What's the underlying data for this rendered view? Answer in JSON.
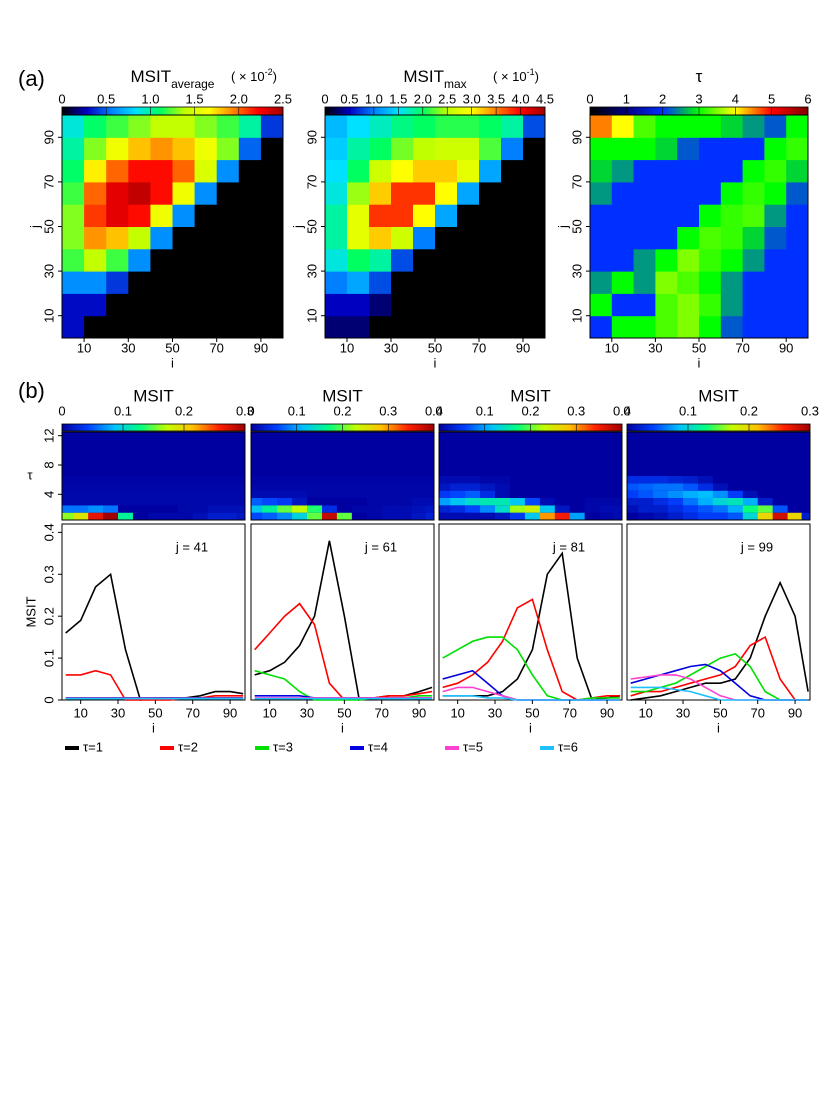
{
  "labels": {
    "a": "(a)",
    "b": "(b)"
  },
  "legend": [
    {
      "name": "τ=1",
      "color": "#000000"
    },
    {
      "name": "τ=2",
      "color": "#ff0000"
    },
    {
      "name": "τ=3",
      "color": "#00e000"
    },
    {
      "name": "τ=4",
      "color": "#0000e0"
    },
    {
      "name": "τ=5",
      "color": "#ff40d0"
    },
    {
      "name": "τ=6",
      "color": "#20c0ff"
    }
  ],
  "chart_data": [
    {
      "type": "heatmap",
      "title": "MSIT",
      "title_sub": "average",
      "multiplier": {
        "text": "( × 10",
        "exponent": "-2",
        "close": ")"
      },
      "zlim": [
        0,
        2.5
      ],
      "zticks": [
        0,
        0.5,
        {
          "value": 1,
          "label": "1.0"
        },
        1.5,
        {
          "value": 2,
          "label": "2.0"
        },
        2.5
      ],
      "colormap": [
        "#000000",
        "#0000c0",
        "#0080ff",
        "#00e0ff",
        "#00ff60",
        "#c0ff00",
        "#ffff00",
        "#ff8000",
        "#ff0000",
        "#a00000"
      ],
      "xlim": [
        0,
        100
      ],
      "ylim": [
        0,
        100
      ],
      "xticks": [
        10,
        30,
        50,
        70,
        90
      ],
      "yticks": [
        10,
        30,
        50,
        70,
        90
      ],
      "xlabel": "i",
      "ylabel": "j",
      "z": [
        [
          0.3,
          0,
          0,
          0,
          0,
          0,
          0,
          0,
          0,
          0
        ],
        [
          0.3,
          0.3,
          0,
          0,
          0,
          0,
          0,
          0,
          0,
          0
        ],
        [
          0.6,
          0.6,
          0.4,
          0,
          0,
          0,
          0,
          0,
          0,
          0
        ],
        [
          1.2,
          1.4,
          1.2,
          0.6,
          0,
          0,
          0,
          0,
          0,
          0
        ],
        [
          1.3,
          1.9,
          1.8,
          1.4,
          0.6,
          0,
          0,
          0,
          0,
          0
        ],
        [
          1.3,
          2.1,
          2.3,
          2.2,
          1.6,
          0.6,
          0,
          0,
          0,
          0
        ],
        [
          1.2,
          2.0,
          2.3,
          2.4,
          2.2,
          1.6,
          0.6,
          0,
          0,
          0
        ],
        [
          1.1,
          1.7,
          2.0,
          2.2,
          2.2,
          2.0,
          1.5,
          0.6,
          0,
          0
        ],
        [
          1.0,
          1.3,
          1.6,
          1.8,
          1.9,
          1.8,
          1.6,
          1.3,
          0.5,
          0
        ],
        [
          0.9,
          1.1,
          1.2,
          1.3,
          1.4,
          1.4,
          1.3,
          1.2,
          1.0,
          0.4
        ]
      ]
    },
    {
      "type": "heatmap",
      "title": "MSIT",
      "title_sub": "max",
      "multiplier": {
        "text": "( × 10",
        "exponent": "-1",
        "close": ")"
      },
      "zlim": [
        0,
        4.5
      ],
      "zticks": [
        0,
        0.5,
        {
          "value": 1,
          "label": "1.0"
        },
        1.5,
        {
          "value": 2,
          "label": "2.0"
        },
        2.5,
        {
          "value": 3,
          "label": "3.0"
        },
        3.5,
        {
          "value": 4,
          "label": "4.0"
        },
        4.5
      ],
      "colormap": [
        "#000000",
        "#0000c0",
        "#0080ff",
        "#00e0ff",
        "#00ff60",
        "#c0ff00",
        "#ffff00",
        "#ff8000",
        "#ff0000",
        "#a00000"
      ],
      "xlim": [
        0,
        100
      ],
      "ylim": [
        0,
        100
      ],
      "xticks": [
        10,
        30,
        50,
        70,
        90
      ],
      "yticks": [
        10,
        30,
        50,
        70,
        90
      ],
      "xlabel": "i",
      "ylabel": "j",
      "z": [
        [
          0.3,
          0.3,
          0,
          0,
          0,
          0,
          0,
          0,
          0,
          0
        ],
        [
          0.5,
          0.5,
          0.3,
          0,
          0,
          0,
          0,
          0,
          0,
          0
        ],
        [
          1.0,
          1.2,
          0.8,
          0,
          0,
          0,
          0,
          0,
          0,
          0
        ],
        [
          1.6,
          2.0,
          1.8,
          0.8,
          0,
          0,
          0,
          0,
          0,
          0
        ],
        [
          1.8,
          2.8,
          3.2,
          2.6,
          1.0,
          0,
          0,
          0,
          0,
          0
        ],
        [
          1.8,
          2.8,
          3.8,
          3.8,
          3.0,
          1.2,
          0,
          0,
          0,
          0
        ],
        [
          1.6,
          2.4,
          3.2,
          3.8,
          3.8,
          3.0,
          1.2,
          0,
          0,
          0
        ],
        [
          1.5,
          2.0,
          2.6,
          3.0,
          3.2,
          3.2,
          2.8,
          1.2,
          0,
          0
        ],
        [
          1.4,
          1.8,
          2.0,
          2.3,
          2.5,
          2.6,
          2.6,
          2.2,
          1.0,
          0
        ],
        [
          1.3,
          1.5,
          1.7,
          1.9,
          2.0,
          2.1,
          2.1,
          2.0,
          1.8,
          0.8
        ]
      ]
    },
    {
      "type": "heatmap",
      "title": "τ",
      "zlim": [
        0,
        6
      ],
      "zticks": [
        0,
        1,
        2,
        3,
        4,
        5,
        6
      ],
      "colormap": [
        "#000000",
        "#000080",
        "#0030ff",
        "#00ff00",
        "#ffff00",
        "#ff0000",
        "#800000"
      ],
      "xlim": [
        0,
        100
      ],
      "ylim": [
        0,
        100
      ],
      "xticks": [
        10,
        30,
        50,
        70,
        90
      ],
      "yticks": [
        10,
        30,
        50,
        70,
        90
      ],
      "xlabel": "i",
      "ylabel": "j",
      "z": [
        [
          2,
          3,
          3,
          3.3,
          3.5,
          3,
          2.2,
          2,
          2,
          2
        ],
        [
          3,
          2,
          2,
          3.3,
          3.5,
          3.2,
          2.5,
          2,
          2,
          2
        ],
        [
          2.5,
          3,
          2.5,
          3.5,
          3.3,
          3,
          2.5,
          2,
          2,
          2
        ],
        [
          2,
          2,
          2.5,
          3,
          3.5,
          3.2,
          3,
          2.5,
          2,
          2
        ],
        [
          2,
          2,
          2,
          2,
          3,
          3.3,
          3.2,
          2.8,
          2.2,
          2
        ],
        [
          2,
          2,
          2,
          2,
          2,
          3,
          3.2,
          3.3,
          2.5,
          2
        ],
        [
          2.5,
          2,
          2,
          2,
          2,
          2,
          3,
          3.2,
          3,
          2.2
        ],
        [
          2.8,
          2.5,
          2,
          2,
          2,
          2,
          2,
          3,
          3.2,
          2.8
        ],
        [
          3,
          3,
          3,
          2.8,
          2.2,
          2,
          2,
          2,
          3,
          3.2
        ],
        [
          4.5,
          4.0,
          3.3,
          3,
          3,
          3,
          2.8,
          2.5,
          2.2,
          3
        ]
      ]
    },
    {
      "type": "line_strip",
      "title": "MSIT",
      "zlim": [
        0,
        0.3
      ],
      "zticks": [
        0,
        0.1,
        0.2,
        0.3
      ],
      "colormap": [
        "#0000a0",
        "#0040ff",
        "#00c0ff",
        "#00ff80",
        "#c0ff00",
        "#ffc000",
        "#ff2000",
        "#a00000"
      ],
      "tau_ylim": [
        0.5,
        12.5
      ],
      "tau_ticks": [
        4,
        8,
        12
      ],
      "tau_label": "τ",
      "annotation": "j = 41",
      "xlim": [
        0,
        98
      ],
      "xticks": [
        10,
        30,
        50,
        70,
        90
      ],
      "xlabel": "i",
      "ylim": [
        0,
        0.42
      ],
      "yticks": [
        0,
        0.1,
        0.2,
        0.3,
        0.4
      ],
      "ylabel": "MSIT",
      "x": [
        2,
        10,
        18,
        26,
        34,
        42,
        50,
        58,
        66,
        74,
        82,
        90,
        97
      ],
      "series": [
        {
          "values": [
            0.16,
            0.19,
            0.27,
            0.3,
            0.12,
            0,
            0.005,
            0.005,
            0.005,
            0.01,
            0.02,
            0.02,
            0.015
          ]
        },
        {
          "values": [
            0.06,
            0.06,
            0.07,
            0.06,
            0,
            0,
            0,
            0,
            0.005,
            0.005,
            0.01,
            0.01,
            0.01
          ]
        },
        {
          "values": [
            0.005,
            0.005,
            0.005,
            0.005,
            0.005,
            0.005,
            0.005,
            0.005,
            0.005,
            0.005,
            0.005,
            0.005,
            0.005
          ]
        },
        {
          "values": [
            0.005,
            0.005,
            0.005,
            0.005,
            0.005,
            0.005,
            0.005,
            0.005,
            0.005,
            0.005,
            0.005,
            0.005,
            0.005
          ]
        },
        {
          "values": [
            0.004,
            0.004,
            0.004,
            0.004,
            0.004,
            0.004,
            0.004,
            0.004,
            0.004,
            0.004,
            0.004,
            0.004,
            0.004
          ]
        },
        {
          "values": [
            0.003,
            0.003,
            0.003,
            0.003,
            0.003,
            0.003,
            0.003,
            0.003,
            0.003,
            0.003,
            0.003,
            0.003,
            0.003
          ]
        }
      ]
    },
    {
      "type": "line_strip",
      "title": "MSIT",
      "zlim": [
        0,
        0.4
      ],
      "zticks": [
        0,
        0.1,
        0.2,
        0.3,
        0.4
      ],
      "colormap": [
        "#0000a0",
        "#0040ff",
        "#00c0ff",
        "#00ff80",
        "#c0ff00",
        "#ffc000",
        "#ff2000",
        "#a00000"
      ],
      "tau_ylim": [
        0.5,
        12.5
      ],
      "annotation": "j = 61",
      "xlim": [
        0,
        98
      ],
      "xticks": [
        10,
        30,
        50,
        70,
        90
      ],
      "xlabel": "i",
      "ylim": [
        0,
        0.42
      ],
      "x": [
        2,
        10,
        18,
        26,
        34,
        42,
        50,
        58,
        66,
        74,
        82,
        90,
        97
      ],
      "series": [
        {
          "values": [
            0.06,
            0.07,
            0.09,
            0.13,
            0.2,
            0.38,
            0.2,
            0,
            0.005,
            0.01,
            0.01,
            0.02,
            0.03
          ]
        },
        {
          "values": [
            0.12,
            0.16,
            0.2,
            0.23,
            0.18,
            0.04,
            0,
            0.005,
            0.005,
            0.01,
            0.01,
            0.015,
            0.02
          ]
        },
        {
          "values": [
            0.07,
            0.06,
            0.05,
            0.02,
            0,
            0,
            0,
            0,
            0.005,
            0.005,
            0.005,
            0.01,
            0.01
          ]
        },
        {
          "values": [
            0.01,
            0.01,
            0.01,
            0.01,
            0.005,
            0.005,
            0.005,
            0.005,
            0.005,
            0.005,
            0.005,
            0.005,
            0.005
          ]
        },
        {
          "values": [
            0.005,
            0.005,
            0.005,
            0.005,
            0.005,
            0.005,
            0.005,
            0.005,
            0.005,
            0.005,
            0.005,
            0.005,
            0.005
          ]
        },
        {
          "values": [
            0.003,
            0.003,
            0.003,
            0.003,
            0.003,
            0.003,
            0.003,
            0.003,
            0.003,
            0.003,
            0.003,
            0.003,
            0.003
          ]
        }
      ]
    },
    {
      "type": "line_strip",
      "title": "MSIT",
      "zlim": [
        0,
        0.4
      ],
      "zticks": [
        0,
        0.1,
        0.2,
        0.3,
        0.4
      ],
      "colormap": [
        "#0000a0",
        "#0040ff",
        "#00c0ff",
        "#00ff80",
        "#c0ff00",
        "#ffc000",
        "#ff2000",
        "#a00000"
      ],
      "tau_ylim": [
        0.5,
        12.5
      ],
      "annotation": "j = 81",
      "xlim": [
        0,
        98
      ],
      "xticks": [
        10,
        30,
        50,
        70,
        90
      ],
      "xlabel": "i",
      "ylim": [
        0,
        0.42
      ],
      "x": [
        2,
        10,
        18,
        26,
        34,
        42,
        50,
        58,
        66,
        74,
        82,
        90,
        97
      ],
      "series": [
        {
          "values": [
            0.01,
            0.01,
            0.01,
            0.01,
            0.02,
            0.05,
            0.12,
            0.3,
            0.35,
            0.1,
            0,
            0.005,
            0.01
          ]
        },
        {
          "values": [
            0.03,
            0.04,
            0.06,
            0.09,
            0.14,
            0.22,
            0.24,
            0.12,
            0.02,
            0,
            0.005,
            0.01,
            0.01
          ]
        },
        {
          "values": [
            0.1,
            0.12,
            0.14,
            0.15,
            0.15,
            0.12,
            0.06,
            0.01,
            0,
            0,
            0.005,
            0.005,
            0.005
          ]
        },
        {
          "values": [
            0.05,
            0.06,
            0.07,
            0.04,
            0.01,
            0,
            0,
            0,
            0,
            0,
            0,
            0,
            0
          ]
        },
        {
          "values": [
            0.02,
            0.03,
            0.03,
            0.02,
            0.01,
            0,
            0,
            0,
            0,
            0,
            0,
            0,
            0
          ]
        },
        {
          "values": [
            0.01,
            0.01,
            0.01,
            0.005,
            0.005,
            0,
            0,
            0,
            0,
            0,
            0,
            0,
            0
          ]
        }
      ]
    },
    {
      "type": "line_strip",
      "title": "MSIT",
      "zlim": [
        0,
        0.3
      ],
      "zticks": [
        0,
        0.1,
        0.2,
        0.3
      ],
      "colormap": [
        "#0000a0",
        "#0040ff",
        "#00c0ff",
        "#00ff80",
        "#c0ff00",
        "#ffc000",
        "#ff2000",
        "#a00000"
      ],
      "tau_ylim": [
        0.5,
        12.5
      ],
      "annotation": "j = 99",
      "xlim": [
        0,
        98
      ],
      "xticks": [
        10,
        30,
        50,
        70,
        90
      ],
      "xlabel": "i",
      "ylim": [
        0,
        0.42
      ],
      "x": [
        2,
        10,
        18,
        26,
        34,
        42,
        50,
        58,
        66,
        74,
        82,
        90,
        97
      ],
      "series": [
        {
          "values": [
            0,
            0.005,
            0.01,
            0.02,
            0.03,
            0.04,
            0.04,
            0.05,
            0.1,
            0.2,
            0.28,
            0.2,
            0.02
          ]
        },
        {
          "values": [
            0.01,
            0.02,
            0.02,
            0.03,
            0.04,
            0.05,
            0.06,
            0.08,
            0.13,
            0.15,
            0.05,
            0,
            0
          ]
        },
        {
          "values": [
            0.02,
            0.02,
            0.03,
            0.04,
            0.06,
            0.08,
            0.1,
            0.11,
            0.08,
            0.02,
            0,
            0,
            0
          ]
        },
        {
          "values": [
            0.04,
            0.05,
            0.06,
            0.07,
            0.08,
            0.085,
            0.07,
            0.04,
            0.01,
            0,
            0,
            0,
            0
          ]
        },
        {
          "values": [
            0.05,
            0.055,
            0.06,
            0.06,
            0.05,
            0.03,
            0.01,
            0,
            0,
            0,
            0,
            0,
            0
          ]
        },
        {
          "values": [
            0.03,
            0.03,
            0.03,
            0.025,
            0.02,
            0.01,
            0,
            0,
            0,
            0,
            0,
            0,
            0
          ]
        }
      ]
    }
  ]
}
